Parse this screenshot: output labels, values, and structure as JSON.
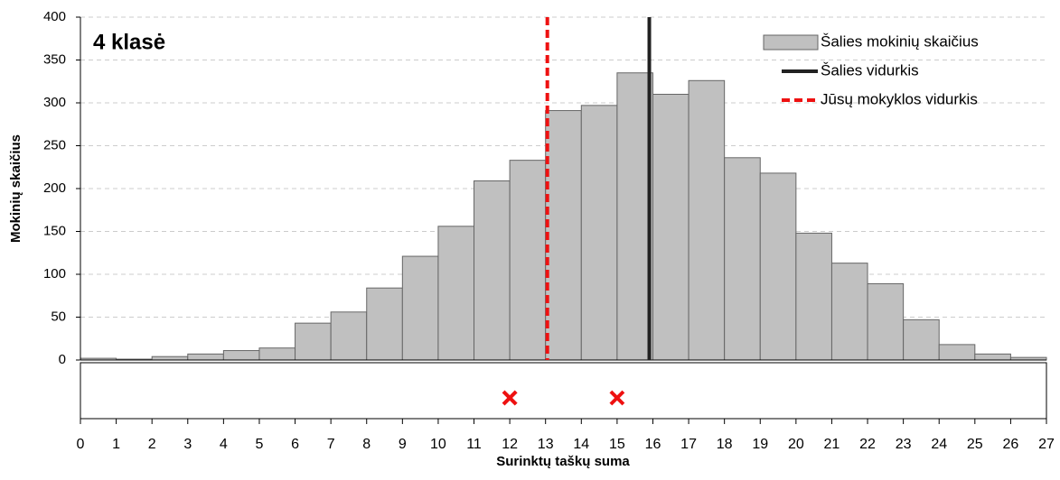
{
  "chart_data": {
    "type": "histogram",
    "title": "4 klasė",
    "xlabel": "Surinktų taškų suma",
    "ylabel": "Mokinių skaičius",
    "name": "Šalies mokinių skaičius",
    "color": "#c0c0c0",
    "bins": [
      0,
      1,
      2,
      3,
      4,
      5,
      6,
      7,
      8,
      9,
      10,
      11,
      12,
      13,
      14,
      15,
      16,
      17,
      18,
      19,
      20,
      21,
      22,
      23,
      24,
      25,
      26,
      27
    ],
    "values": [
      2,
      1,
      4,
      7,
      11,
      14,
      43,
      56,
      84,
      121,
      156,
      209,
      233,
      291,
      297,
      335,
      310,
      326,
      236,
      218,
      148,
      113,
      89,
      47,
      18,
      7,
      3
    ],
    "xlim": [
      0,
      27
    ],
    "xticks": [
      0,
      1,
      2,
      3,
      4,
      5,
      6,
      7,
      8,
      9,
      10,
      11,
      12,
      13,
      14,
      15,
      16,
      17,
      18,
      19,
      20,
      21,
      22,
      23,
      24,
      25,
      26,
      27
    ],
    "ylim": [
      0,
      400
    ],
    "yticks": [
      0,
      50,
      100,
      150,
      200,
      250,
      300,
      350,
      400
    ],
    "grid": true,
    "reference_lines": [
      {
        "name": "Šalies vidurkis",
        "value": 15.9,
        "color": "#222222",
        "style": "solid"
      },
      {
        "name": "Jūsų mokyklos vidurkis",
        "value": 13.05,
        "color": "#ee1111",
        "style": "dashed"
      }
    ],
    "markers": {
      "color": "#ee1111",
      "values": [
        12,
        12,
        15
      ]
    },
    "legend": "top-right"
  }
}
